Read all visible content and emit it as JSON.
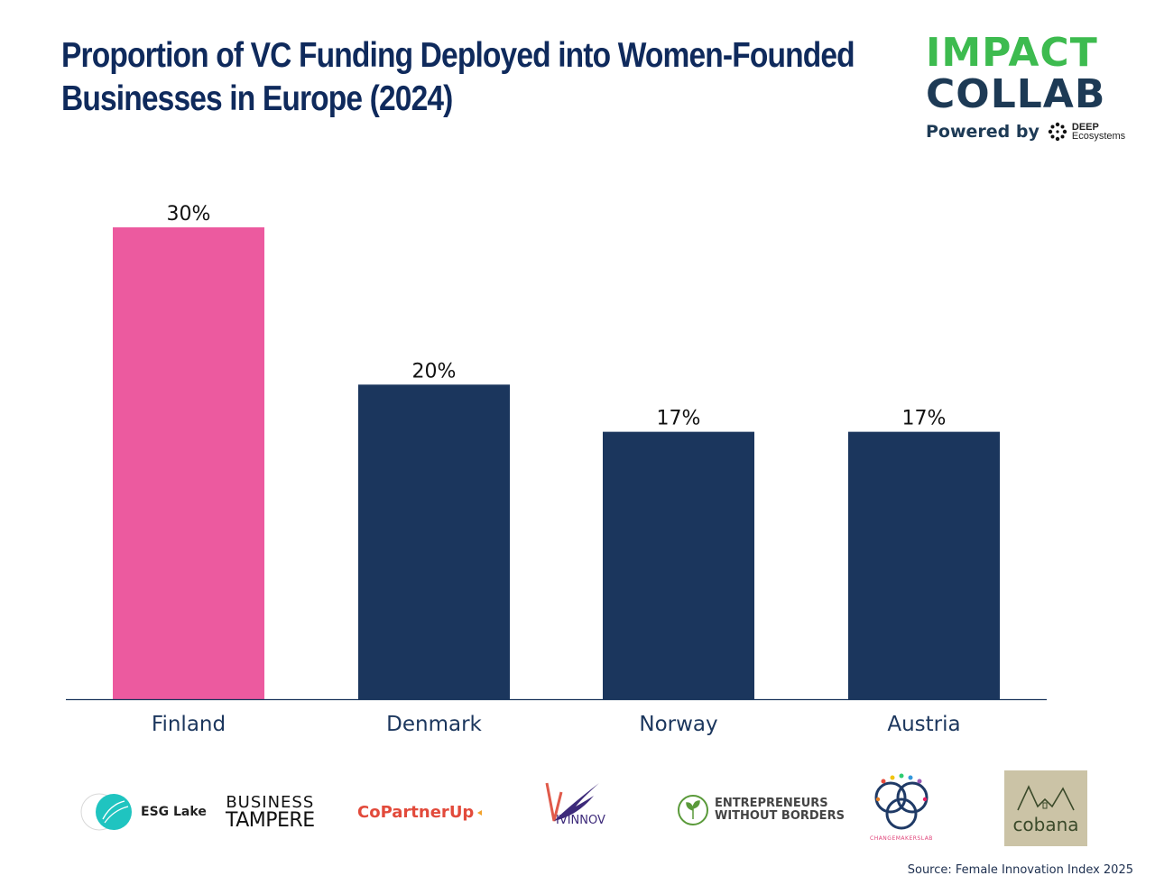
{
  "title_lines": [
    "Proportion of VC Funding Deployed into Women-Founded",
    "Businesses in Europe (2024)"
  ],
  "brand": {
    "line1": "IMPACT",
    "line2": "COLLAB",
    "powered_by": "Powered by",
    "partner_line1": "DEEP",
    "partner_line2": "Ecosystems",
    "colors": {
      "green": "#3dbb4f",
      "navy": "#1d3a55"
    }
  },
  "chart_data": {
    "type": "bar",
    "categories": [
      "Finland",
      "Denmark",
      "Norway",
      "Austria"
    ],
    "values": [
      30,
      20,
      17,
      17
    ],
    "value_labels": [
      "30%",
      "20%",
      "17%",
      "17%"
    ],
    "unit": "%",
    "ylim": [
      0,
      30
    ],
    "bar_colors": [
      "#ec5a9f",
      "#1b365d",
      "#1b365d",
      "#1b365d"
    ],
    "grid": false,
    "legend": "none",
    "axis_color": "#1b365d"
  },
  "partner_logos": [
    {
      "name": "esg-lake",
      "text": "ESG Lake"
    },
    {
      "name": "business-tampere",
      "line1": "BUSINESS",
      "line2": "TAMPERE"
    },
    {
      "name": "copartnerup",
      "text": "CoPartnerUp"
    },
    {
      "name": "vivinnov",
      "text": "IVINNOV"
    },
    {
      "name": "entrepreneurs-without-borders",
      "line1": "ENTREPRENEURS",
      "line2": "WITHOUT BORDERS"
    },
    {
      "name": "changemakerslab",
      "text": "CHANGEMAKERSLAB"
    },
    {
      "name": "cobana",
      "text": "cobana"
    }
  ],
  "source": "Source: Female Innovation Index 2025"
}
